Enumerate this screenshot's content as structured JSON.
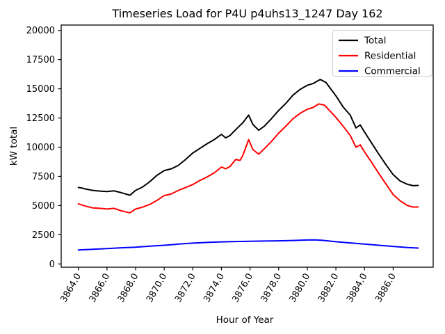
{
  "chart_data": {
    "type": "line",
    "title": "Timeseries Load for P4U p4uhs13_1247  Day 162",
    "xlabel": "Hour of Year",
    "ylabel": "kW total",
    "xlim": [
      3862.8,
      3888.8
    ],
    "ylim": [
      -280,
      20460
    ],
    "grid": false,
    "x_ticks": [
      3864,
      3866,
      3868,
      3870,
      3872,
      3874,
      3876,
      3878,
      3880,
      3882,
      3884,
      3886
    ],
    "x_tick_labels": [
      "3864.0",
      "3866.0",
      "3868.0",
      "3870.0",
      "3872.0",
      "3874.0",
      "3876.0",
      "3878.0",
      "3880.0",
      "3882.0",
      "3884.0",
      "3886.0"
    ],
    "y_ticks": [
      0,
      2500,
      5000,
      7500,
      10000,
      12500,
      15000,
      17500,
      20000
    ],
    "y_tick_labels": [
      "0",
      "2500",
      "5000",
      "7500",
      "10000",
      "12500",
      "15000",
      "17500",
      "20000"
    ],
    "legend": {
      "position": "upper right"
    },
    "series": [
      {
        "name": "Total",
        "color": "#000000",
        "points": [
          [
            3864,
            6550
          ],
          [
            3864.25,
            6500
          ],
          [
            3864.5,
            6420
          ],
          [
            3865,
            6300
          ],
          [
            3865.5,
            6240
          ],
          [
            3866,
            6200
          ],
          [
            3866.5,
            6260
          ],
          [
            3867,
            6100
          ],
          [
            3867.6,
            5880
          ],
          [
            3868,
            6300
          ],
          [
            3868.5,
            6600
          ],
          [
            3869,
            7050
          ],
          [
            3869.5,
            7600
          ],
          [
            3870,
            8000
          ],
          [
            3870.5,
            8150
          ],
          [
            3871,
            8450
          ],
          [
            3871.5,
            8950
          ],
          [
            3872,
            9500
          ],
          [
            3872.5,
            9900
          ],
          [
            3873,
            10300
          ],
          [
            3873.5,
            10650
          ],
          [
            3874,
            11100
          ],
          [
            3874.3,
            10800
          ],
          [
            3874.6,
            11000
          ],
          [
            3875,
            11500
          ],
          [
            3875.5,
            12100
          ],
          [
            3875.9,
            12750
          ],
          [
            3876.2,
            11950
          ],
          [
            3876.6,
            11450
          ],
          [
            3877,
            11800
          ],
          [
            3877.5,
            12450
          ],
          [
            3878,
            13150
          ],
          [
            3878.5,
            13750
          ],
          [
            3879,
            14450
          ],
          [
            3879.5,
            14950
          ],
          [
            3880,
            15300
          ],
          [
            3880.4,
            15450
          ],
          [
            3880.9,
            15800
          ],
          [
            3881.3,
            15550
          ],
          [
            3882,
            14400
          ],
          [
            3882.5,
            13450
          ],
          [
            3883,
            12750
          ],
          [
            3883.4,
            11650
          ],
          [
            3883.7,
            11900
          ],
          [
            3884,
            11300
          ],
          [
            3884.5,
            10350
          ],
          [
            3885,
            9400
          ],
          [
            3885.5,
            8500
          ],
          [
            3886,
            7650
          ],
          [
            3886.5,
            7100
          ],
          [
            3887,
            6820
          ],
          [
            3887.4,
            6700
          ],
          [
            3887.75,
            6720
          ]
        ]
      },
      {
        "name": "Residential",
        "color": "#ff0000",
        "points": [
          [
            3864,
            5150
          ],
          [
            3864.5,
            4950
          ],
          [
            3865,
            4800
          ],
          [
            3865.5,
            4760
          ],
          [
            3866,
            4700
          ],
          [
            3866.5,
            4760
          ],
          [
            3867,
            4550
          ],
          [
            3867.6,
            4380
          ],
          [
            3868,
            4700
          ],
          [
            3868.5,
            4870
          ],
          [
            3869,
            5100
          ],
          [
            3869.5,
            5450
          ],
          [
            3870,
            5850
          ],
          [
            3870.5,
            6000
          ],
          [
            3871,
            6300
          ],
          [
            3871.5,
            6550
          ],
          [
            3872,
            6800
          ],
          [
            3872.5,
            7150
          ],
          [
            3873,
            7450
          ],
          [
            3873.5,
            7800
          ],
          [
            3874,
            8300
          ],
          [
            3874.3,
            8150
          ],
          [
            3874.6,
            8350
          ],
          [
            3875,
            8950
          ],
          [
            3875.3,
            8870
          ],
          [
            3875.5,
            9300
          ],
          [
            3875.9,
            10650
          ],
          [
            3876.2,
            9800
          ],
          [
            3876.6,
            9400
          ],
          [
            3877,
            9870
          ],
          [
            3877.5,
            10500
          ],
          [
            3878,
            11200
          ],
          [
            3878.5,
            11800
          ],
          [
            3879,
            12430
          ],
          [
            3879.5,
            12900
          ],
          [
            3880,
            13250
          ],
          [
            3880.4,
            13400
          ],
          [
            3880.8,
            13700
          ],
          [
            3881.2,
            13600
          ],
          [
            3882,
            12550
          ],
          [
            3882.5,
            11800
          ],
          [
            3883,
            11000
          ],
          [
            3883.4,
            10000
          ],
          [
            3883.7,
            10200
          ],
          [
            3884,
            9600
          ],
          [
            3884.5,
            8700
          ],
          [
            3885,
            7750
          ],
          [
            3885.5,
            6850
          ],
          [
            3886,
            5950
          ],
          [
            3886.5,
            5400
          ],
          [
            3887,
            5000
          ],
          [
            3887.4,
            4870
          ],
          [
            3887.75,
            4880
          ]
        ]
      },
      {
        "name": "Commercial",
        "color": "#0000ff",
        "points": [
          [
            3864,
            1200
          ],
          [
            3865,
            1250
          ],
          [
            3866,
            1320
          ],
          [
            3867,
            1380
          ],
          [
            3868,
            1430
          ],
          [
            3869,
            1520
          ],
          [
            3870,
            1600
          ],
          [
            3871,
            1700
          ],
          [
            3872,
            1780
          ],
          [
            3873,
            1840
          ],
          [
            3874,
            1890
          ],
          [
            3875,
            1920
          ],
          [
            3876,
            1940
          ],
          [
            3877,
            1960
          ],
          [
            3878,
            1980
          ],
          [
            3879,
            2010
          ],
          [
            3880,
            2050
          ],
          [
            3880.5,
            2060
          ],
          [
            3881,
            2030
          ],
          [
            3882,
            1900
          ],
          [
            3883,
            1800
          ],
          [
            3884,
            1700
          ],
          [
            3885,
            1600
          ],
          [
            3886,
            1500
          ],
          [
            3887,
            1400
          ],
          [
            3887.75,
            1360
          ]
        ]
      }
    ]
  }
}
